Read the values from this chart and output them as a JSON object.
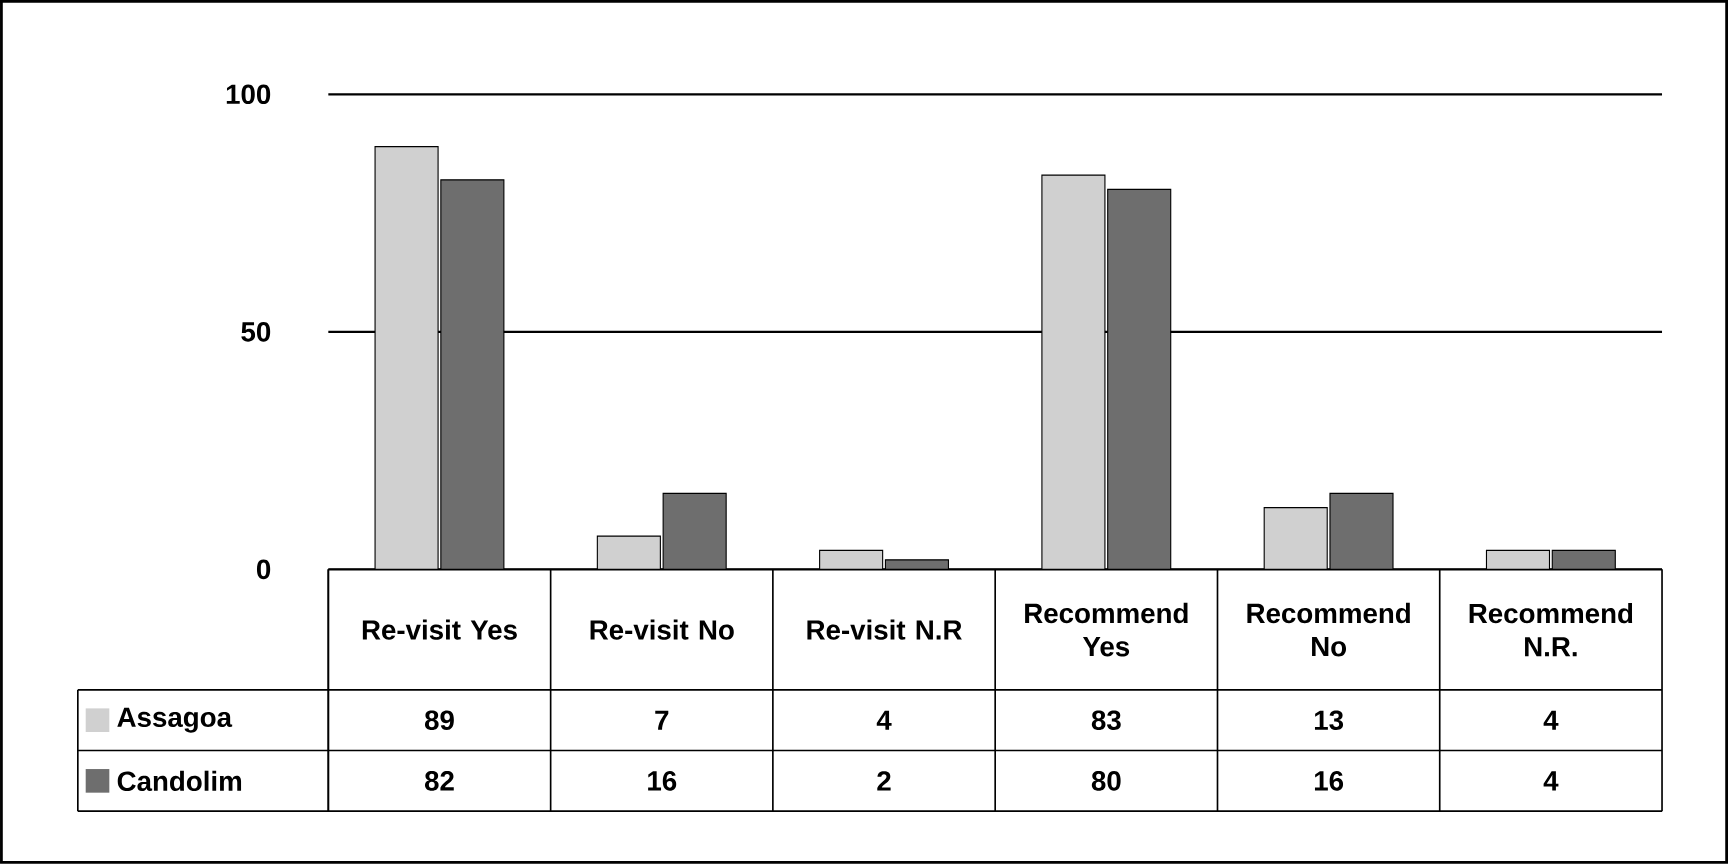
{
  "chart_data": {
    "type": "bar",
    "categories": [
      "Re-visit Yes",
      "Re-visit No",
      "Re-visit N.R",
      "Recommend Yes",
      "Recommend No",
      "Recommend N.R."
    ],
    "series": [
      {
        "name": "Assagoa",
        "color": "#d0d0d0",
        "values": [
          89,
          7,
          4,
          83,
          13,
          4
        ]
      },
      {
        "name": "Candolim",
        "color": "#6e6e6e",
        "values": [
          82,
          16,
          2,
          80,
          16,
          4
        ]
      }
    ],
    "ylim": [
      0,
      100
    ],
    "yticks": [
      0,
      50,
      100
    ],
    "grid": "y",
    "legend": "bottom left",
    "data_labels": true
  }
}
